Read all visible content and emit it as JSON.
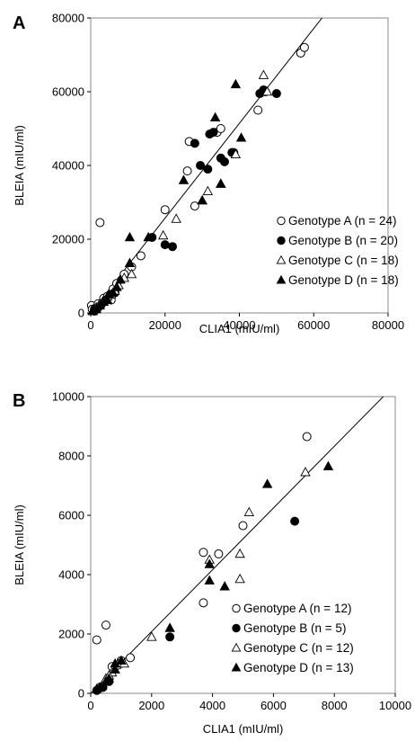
{
  "chart_data": [
    {
      "panel": "A",
      "type": "scatter",
      "xlabel": "CLIA1 (mIU/ml)",
      "ylabel": "BLEIA (mIU/ml)",
      "xlim": [
        0,
        80000
      ],
      "ylim": [
        0,
        80000
      ],
      "x_ticks": [
        "0",
        "20000",
        "40000",
        "60000",
        "80000"
      ],
      "y_ticks": [
        "0",
        "20000",
        "40000",
        "60000",
        "80000"
      ],
      "grid": false,
      "legend_position": "bottom-right",
      "regression_line": [
        [
          0,
          0
        ],
        [
          63000,
          81000
        ]
      ],
      "series": [
        {
          "name": "Genotype A (n = 24)",
          "marker": "open-circle",
          "points": [
            [
              200,
              2000
            ],
            [
              400,
              1000
            ],
            [
              1500,
              1500
            ],
            [
              2000,
              2500
            ],
            [
              2500,
              24500
            ],
            [
              3500,
              4000
            ],
            [
              4500,
              4500
            ],
            [
              6000,
              6500
            ],
            [
              7000,
              8000
            ],
            [
              9000,
              10500
            ],
            [
              11000,
              12500
            ],
            [
              13500,
              15500
            ],
            [
              20000,
              28000
            ],
            [
              26000,
              38500
            ],
            [
              26500,
              46500
            ],
            [
              28000,
              29000
            ],
            [
              34000,
              49000
            ],
            [
              35000,
              50000
            ],
            [
              38500,
              43500
            ],
            [
              45000,
              55000
            ],
            [
              56500,
              70500
            ],
            [
              57500,
              72000
            ],
            [
              1000,
              500
            ],
            [
              5500,
              3500
            ]
          ]
        },
        {
          "name": "Genotype B (n = 20)",
          "marker": "filled-circle",
          "points": [
            [
              1000,
              1000
            ],
            [
              2000,
              1500
            ],
            [
              3000,
              2500
            ],
            [
              4000,
              3500
            ],
            [
              6500,
              5500
            ],
            [
              16500,
              20500
            ],
            [
              20000,
              18500
            ],
            [
              22000,
              18000
            ],
            [
              28000,
              46000
            ],
            [
              29500,
              40000
            ],
            [
              31500,
              39000
            ],
            [
              32000,
              48500
            ],
            [
              33000,
              49000
            ],
            [
              35000,
              42000
            ],
            [
              36000,
              41000
            ],
            [
              38000,
              43500
            ],
            [
              45500,
              59500
            ],
            [
              46500,
              60500
            ],
            [
              47000,
              60000
            ],
            [
              50000,
              59500
            ]
          ]
        },
        {
          "name": "Genotype C (n = 18)",
          "marker": "open-triangle",
          "points": [
            [
              500,
              500
            ],
            [
              1500,
              1500
            ],
            [
              2500,
              2500
            ],
            [
              3500,
              3000
            ],
            [
              4500,
              4500
            ],
            [
              5500,
              5000
            ],
            [
              6500,
              6000
            ],
            [
              7500,
              7500
            ],
            [
              9000,
              9500
            ],
            [
              11000,
              10500
            ],
            [
              19500,
              21000
            ],
            [
              23000,
              25500
            ],
            [
              30000,
              30500
            ],
            [
              31500,
              33000
            ],
            [
              35000,
              35000
            ],
            [
              39000,
              43000
            ],
            [
              46500,
              64500
            ],
            [
              47500,
              60000
            ]
          ]
        },
        {
          "name": "Genotype D (n = 18)",
          "marker": "filled-triangle",
          "points": [
            [
              500,
              500
            ],
            [
              1500,
              1000
            ],
            [
              2500,
              2000
            ],
            [
              3500,
              3000
            ],
            [
              5000,
              5000
            ],
            [
              6000,
              5500
            ],
            [
              7000,
              7000
            ],
            [
              8000,
              9000
            ],
            [
              10500,
              20500
            ],
            [
              10500,
              13500
            ],
            [
              15500,
              20500
            ],
            [
              25000,
              36000
            ],
            [
              30000,
              30500
            ],
            [
              33500,
              53000
            ],
            [
              35000,
              35000
            ],
            [
              39000,
              62000
            ],
            [
              40500,
              47500
            ],
            [
              4500,
              3500
            ]
          ]
        }
      ]
    },
    {
      "panel": "B",
      "type": "scatter",
      "xlabel": "CLIA1 (mIU/ml)",
      "ylabel": "BLEIA (mIU/ml)",
      "xlim": [
        0,
        10000
      ],
      "ylim": [
        0,
        10000
      ],
      "x_ticks": [
        "0",
        "2000",
        "4000",
        "6000",
        "8000",
        "10000"
      ],
      "y_ticks": [
        "0",
        "2000",
        "4000",
        "6000",
        "8000",
        "10000"
      ],
      "grid": false,
      "legend_position": "bottom-right",
      "regression_line": [
        [
          0,
          0
        ],
        [
          9800,
          10200
        ]
      ],
      "series": [
        {
          "name": "Genotype A (n = 12)",
          "marker": "open-circle",
          "points": [
            [
              200,
              1800
            ],
            [
              500,
              2300
            ],
            [
              1000,
              1100
            ],
            [
              1300,
              1200
            ],
            [
              3700,
              4750
            ],
            [
              3700,
              3050
            ],
            [
              4200,
              4700
            ],
            [
              5000,
              5650
            ],
            [
              7100,
              8650
            ],
            [
              700,
              900
            ],
            [
              300,
              200
            ],
            [
              900,
              950
            ]
          ]
        },
        {
          "name": "Genotype B (n = 5)",
          "marker": "filled-circle",
          "points": [
            [
              200,
              100
            ],
            [
              400,
              200
            ],
            [
              2600,
              1900
            ],
            [
              6700,
              5800
            ],
            [
              600,
              400
            ]
          ]
        },
        {
          "name": "Genotype C (n = 12)",
          "marker": "open-triangle",
          "points": [
            [
              300,
              200
            ],
            [
              500,
              500
            ],
            [
              700,
              700
            ],
            [
              900,
              1000
            ],
            [
              1100,
              1000
            ],
            [
              2000,
              1900
            ],
            [
              3900,
              4500
            ],
            [
              4900,
              4700
            ],
            [
              4900,
              3850
            ],
            [
              5200,
              6100
            ],
            [
              7050,
              7450
            ],
            [
              600,
              600
            ]
          ]
        },
        {
          "name": "Genotype D (n = 13)",
          "marker": "filled-triangle",
          "points": [
            [
              200,
              150
            ],
            [
              300,
              200
            ],
            [
              500,
              400
            ],
            [
              600,
              500
            ],
            [
              800,
              800
            ],
            [
              800,
              1000
            ],
            [
              2600,
              2200
            ],
            [
              3900,
              4350
            ],
            [
              3900,
              3800
            ],
            [
              4400,
              3600
            ],
            [
              5800,
              7050
            ],
            [
              7800,
              7650
            ],
            [
              1000,
              1100
            ]
          ]
        }
      ]
    }
  ]
}
